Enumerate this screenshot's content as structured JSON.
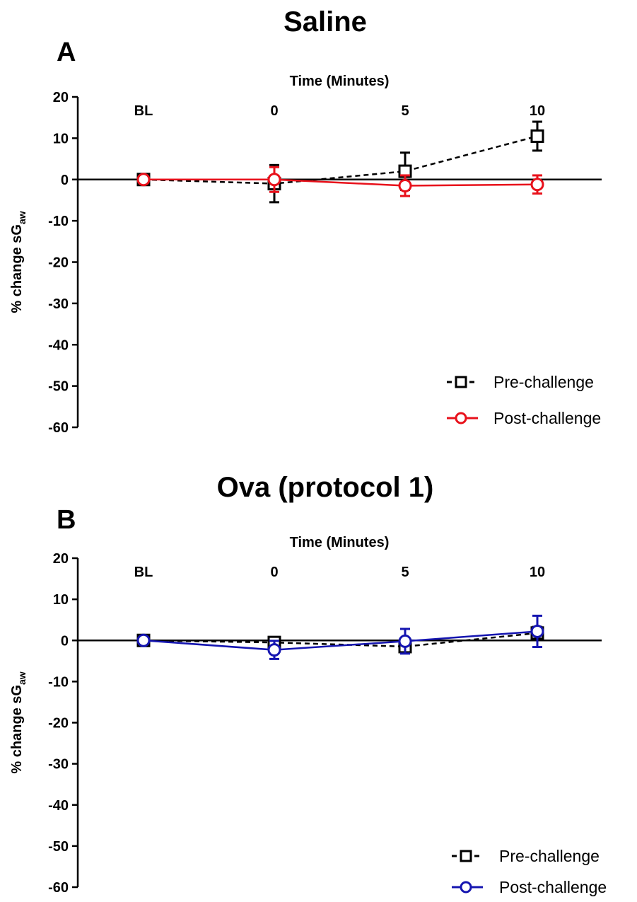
{
  "chart_data": [
    {
      "type": "line",
      "panel": "A",
      "title": "Saline",
      "xlabel": "Time  (Minutes)",
      "ylabel_main": "% change sG",
      "ylabel_sub": "aw",
      "categories": [
        "BL",
        "0",
        "5",
        "10"
      ],
      "yticks": [
        20,
        10,
        0,
        -10,
        -20,
        -30,
        -40,
        -50,
        -60
      ],
      "ylim": [
        -60,
        20
      ],
      "grid": false,
      "legend_position": "bottom-right",
      "series": [
        {
          "name": "Pre-challenge",
          "color": "#000000",
          "marker": "square",
          "dashed": true,
          "values": [
            0,
            -1,
            2,
            10.5
          ],
          "errors": [
            0,
            4.5,
            4.5,
            3.5
          ]
        },
        {
          "name": "Post-challenge",
          "color": "#e8111b",
          "marker": "circle",
          "dashed": false,
          "values": [
            0,
            0,
            -1.5,
            -1.2
          ],
          "errors": [
            0,
            3,
            2.5,
            2.2
          ]
        }
      ]
    },
    {
      "type": "line",
      "panel": "B",
      "title": "Ova  (protocol 1)",
      "xlabel": "Time  (Minutes)",
      "ylabel_main": "% change sG",
      "ylabel_sub": "aw",
      "categories": [
        "BL",
        "0",
        "5",
        "10"
      ],
      "yticks": [
        20,
        10,
        0,
        -10,
        -20,
        -30,
        -40,
        -50,
        -60
      ],
      "ylim": [
        -60,
        20
      ],
      "grid": false,
      "legend_position": "bottom-right",
      "series": [
        {
          "name": "Pre-challenge",
          "color": "#000000",
          "marker": "square",
          "dashed": true,
          "values": [
            0,
            -0.5,
            -1.5,
            1.8
          ],
          "errors": [
            0,
            1,
            1,
            1.5
          ]
        },
        {
          "name": "Post-challenge",
          "color": "#1515b0",
          "marker": "circle",
          "dashed": false,
          "values": [
            0,
            -2.3,
            -0.2,
            2.2
          ],
          "errors": [
            0,
            2.2,
            3,
            3.8
          ]
        }
      ]
    }
  ]
}
